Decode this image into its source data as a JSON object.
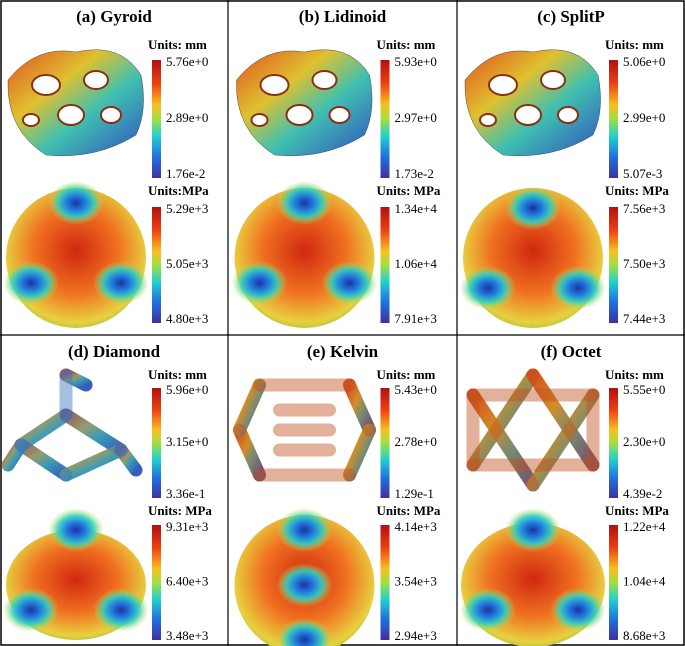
{
  "panels": [
    {
      "title": "(a) Gyroid",
      "displacement": {
        "units": "Units: mm",
        "labels": [
          "5.76e+0",
          "2.89e+0",
          "1.76e-2"
        ]
      },
      "stress": {
        "units": "Units:MPa",
        "labels": [
          "5.29e+3",
          "5.05e+3",
          "4.80e+3"
        ]
      }
    },
    {
      "title": "(b) Lidinoid",
      "displacement": {
        "units": "Units: mm",
        "labels": [
          "5.93e+0",
          "2.97e+0",
          "1.73e-2"
        ]
      },
      "stress": {
        "units": "Units: MPa",
        "labels": [
          "1.34e+4",
          "1.06e+4",
          "7.91e+3"
        ]
      }
    },
    {
      "title": "(c) SplitP",
      "displacement": {
        "units": "Units: mm",
        "labels": [
          "5.06e+0",
          "2.99e+0",
          "5.07e-3"
        ]
      },
      "stress": {
        "units": "Units: MPa",
        "labels": [
          "7.56e+3",
          "7.50e+3",
          "7.44e+3"
        ]
      }
    },
    {
      "title": "(d) Diamond",
      "displacement": {
        "units": "Units: mm",
        "labels": [
          "5.96e+0",
          "3.15e+0",
          "3.36e-1"
        ]
      },
      "stress": {
        "units": "Units: MPa",
        "labels": [
          "9.31e+3",
          "6.40e+3",
          "3.48e+3"
        ]
      }
    },
    {
      "title": "(e) Kelvin",
      "displacement": {
        "units": "Units: mm",
        "labels": [
          "5.43e+0",
          "2.78e+0",
          "1.29e-1"
        ]
      },
      "stress": {
        "units": "Units: MPa",
        "labels": [
          "4.14e+3",
          "3.54e+3",
          "2.94e+3"
        ]
      }
    },
    {
      "title": "(f) Octet",
      "displacement": {
        "units": "Units: mm",
        "labels": [
          "5.55e+0",
          "2.30e+0",
          "4.39e-2"
        ]
      },
      "stress": {
        "units": "Units: MPa",
        "labels": [
          "1.22e+4",
          "1.04e+4",
          "8.68e+3"
        ]
      }
    }
  ]
}
